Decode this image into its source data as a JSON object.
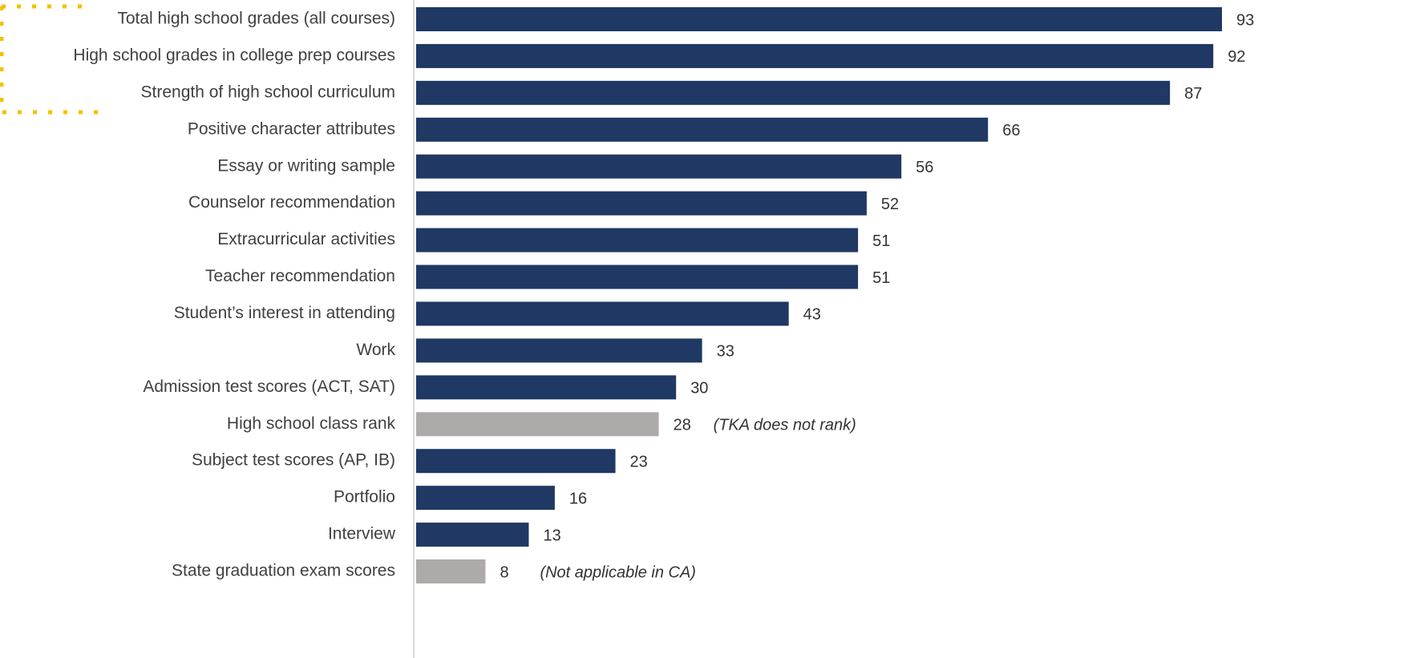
{
  "chart_data": {
    "type": "bar",
    "orientation": "horizontal",
    "categories": [
      "Total high school grades (all courses)",
      "High school grades in college prep courses",
      "Strength of high school curriculum",
      "Positive character attributes",
      "Essay or writing sample",
      "Counselor recommendation",
      "Extracurricular activities",
      "Teacher recommendation",
      "Student’s interest in attending",
      "Work",
      "Admission test scores (ACT, SAT)",
      "High school class rank",
      "Subject test scores (AP, IB)",
      "Portfolio",
      "Interview",
      "State graduation exam scores"
    ],
    "values": [
      93,
      92,
      87,
      66,
      56,
      52,
      51,
      51,
      43,
      33,
      30,
      28,
      23,
      16,
      13,
      8
    ],
    "colors": [
      "#1f3864",
      "#1f3864",
      "#1f3864",
      "#1f3864",
      "#1f3864",
      "#1f3864",
      "#1f3864",
      "#1f3864",
      "#1f3864",
      "#1f3864",
      "#1f3864",
      "#aeaaaa",
      "#1f3864",
      "#1f3864",
      "#1f3864",
      "#aeaaaa"
    ],
    "annotations": [
      {
        "category": "High school class rank",
        "text": "(TKA does not rank)"
      },
      {
        "category": "State graduation exam scores",
        "text": "(Not applicable in CA)"
      }
    ]
  }
}
